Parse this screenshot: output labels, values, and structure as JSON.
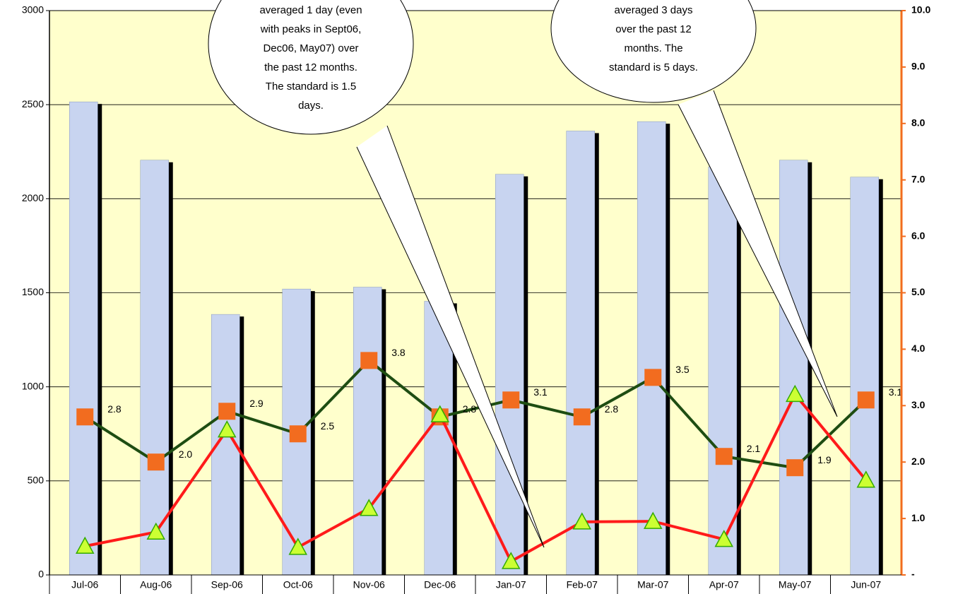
{
  "chart_data": {
    "type": "bar",
    "categories": [
      "Jul-06",
      "Aug-06",
      "Sep-06",
      "Oct-06",
      "Nov-06",
      "Dec-06",
      "Jan-07",
      "Feb-07",
      "Mar-07",
      "Apr-07",
      "May-07",
      "Jun-07"
    ],
    "series": [
      {
        "type": "bar",
        "color": "#c8d4f0",
        "values": [
          2515,
          2205,
          1385,
          1520,
          1530,
          1455,
          2130,
          2360,
          2410,
          2170,
          2205,
          2115
        ]
      },
      {
        "type": "line",
        "axis": "y2",
        "color": "#1e4d12",
        "marker": "square",
        "marker_color": "#f26c1f",
        "values": [
          2.8,
          2.0,
          2.9,
          2.5,
          3.8,
          2.8,
          3.1,
          2.8,
          3.5,
          2.1,
          1.9,
          3.1
        ],
        "value_labels": [
          "2.8",
          "2.0",
          "2.9",
          "2.5",
          "3.8",
          "2.8",
          "3.1",
          "2.8",
          "3.5",
          "2.1",
          "1.9",
          "3.1"
        ]
      },
      {
        "type": "line",
        "axis": "y2",
        "color": "#ff1a1a",
        "marker": "triangle",
        "marker_color": "#ccff33",
        "values": [
          0.51,
          0.76,
          2.57,
          0.49,
          1.18,
          2.84,
          0.24,
          0.94,
          0.95,
          0.63,
          3.2,
          1.68
        ]
      }
    ],
    "ylim": [
      0,
      3000
    ],
    "yticks": [
      0,
      500,
      1000,
      1500,
      2000,
      2500,
      3000
    ],
    "y2lim": [
      0,
      10
    ],
    "y2ticks": [
      {
        "value": 0,
        "label": "-"
      },
      {
        "value": 1,
        "label": "1.0"
      },
      {
        "value": 2,
        "label": "2.0"
      },
      {
        "value": 3,
        "label": "3.0"
      },
      {
        "value": 4,
        "label": "4.0"
      },
      {
        "value": 5,
        "label": "5.0"
      },
      {
        "value": 6,
        "label": "6.0"
      },
      {
        "value": 7,
        "label": "7.0"
      },
      {
        "value": 8,
        "label": "8.0"
      },
      {
        "value": 9,
        "label": "9.0"
      },
      {
        "value": 10,
        "label": "10.0"
      }
    ],
    "y2_color": "#f26c1f",
    "grid": true,
    "annotations": [
      {
        "lines": [
          "averaged 1 day (even",
          "with peaks in Sept06,",
          "Dec06, May07) over",
          "the past 12 months.",
          "The standard is 1.5",
          "days."
        ]
      },
      {
        "lines": [
          "averaged 3 days",
          "over the past 12",
          "months.  The",
          "standard is 5 days."
        ]
      }
    ]
  }
}
